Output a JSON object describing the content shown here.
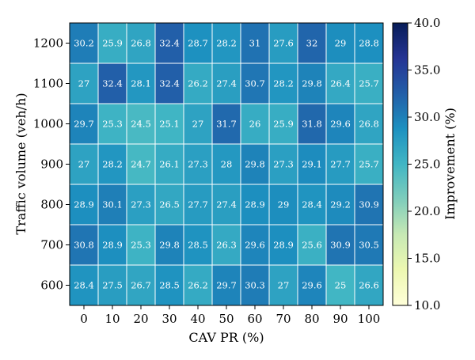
{
  "chart_data": {
    "type": "heatmap",
    "xlabel": "CAV PR (%)",
    "ylabel": "Traffic volume (veh/h)",
    "x_categories": [
      "0",
      "10",
      "20",
      "30",
      "40",
      "50",
      "60",
      "70",
      "80",
      "90",
      "100"
    ],
    "y_categories": [
      "1200",
      "1100",
      "1000",
      "900",
      "800",
      "700",
      "600"
    ],
    "values": [
      [
        30.2,
        25.9,
        26.8,
        32.4,
        28.7,
        28.2,
        31,
        27.6,
        32,
        29,
        28.8
      ],
      [
        27,
        32.4,
        28.1,
        32.4,
        26.2,
        27.4,
        30.7,
        28.2,
        29.8,
        26.4,
        25.7
      ],
      [
        29.7,
        25.3,
        24.5,
        25.1,
        27,
        31.7,
        26,
        25.9,
        31.8,
        29.6,
        26.8
      ],
      [
        27,
        28.2,
        24.7,
        26.1,
        27.3,
        28,
        29.8,
        27.3,
        29.1,
        27.7,
        25.7
      ],
      [
        28.9,
        30.1,
        27.3,
        26.5,
        27.7,
        27.4,
        28.9,
        29,
        28.4,
        29.2,
        30.9
      ],
      [
        30.8,
        28.9,
        25.3,
        29.8,
        28.5,
        26.3,
        29.6,
        28.9,
        25.6,
        30.9,
        30.5
      ],
      [
        28.4,
        27.5,
        26.7,
        28.5,
        26.2,
        29.7,
        30.3,
        27,
        29.6,
        25,
        26.6
      ]
    ],
    "colorbar": {
      "label": "Improvement (%)",
      "range": [
        10,
        40
      ],
      "ticks": [
        "10.0",
        "15.0",
        "20.0",
        "25.0",
        "30.0",
        "35.0",
        "40.0"
      ],
      "colormap": "YlGnBu"
    },
    "cell_labels": true,
    "grid_lines_color": "#ffffff"
  }
}
